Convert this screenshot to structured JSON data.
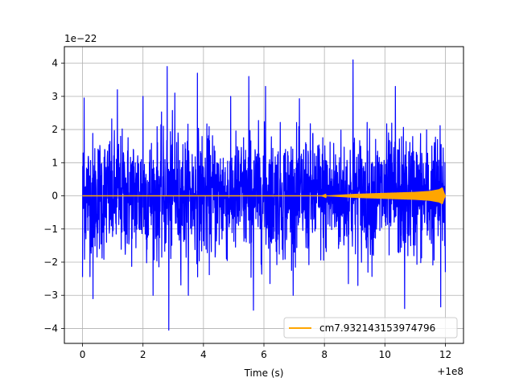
{
  "chart_data": {
    "type": "line",
    "title": "",
    "xlabel": "Time (s)",
    "ylabel": "",
    "x_offset_label": "+1e8",
    "y_scale_label": "1e−22",
    "xlim": [
      -0.6,
      12.6
    ],
    "ylim": [
      -4.45,
      4.5
    ],
    "x_ticks": [
      0,
      2,
      4,
      6,
      8,
      10,
      12
    ],
    "x_tick_labels": [
      "0",
      "2",
      "4",
      "6",
      "8",
      "10",
      "12"
    ],
    "y_ticks": [
      -4,
      -3,
      -2,
      -1,
      0,
      1,
      2,
      3,
      4
    ],
    "y_tick_labels": [
      "−4",
      "−3",
      "−2",
      "−1",
      "0",
      "1",
      "2",
      "3",
      "4"
    ],
    "grid": true,
    "legend_position": "lower-right",
    "series": [
      {
        "color": "#0000ff",
        "x_range": [
          0,
          12
        ],
        "typical_envelope": [
          -1.9,
          2.0
        ],
        "peaks": [
          {
            "x": 0.05,
            "y": 2.95
          },
          {
            "x": 0.0,
            "y": -2.45
          },
          {
            "x": 0.35,
            "y": -3.1
          },
          {
            "x": 1.15,
            "y": 3.2
          },
          {
            "x": 2.0,
            "y": 3.0
          },
          {
            "x": 2.8,
            "y": 3.9
          },
          {
            "x": 2.85,
            "y": -4.05
          },
          {
            "x": 3.05,
            "y": 3.1
          },
          {
            "x": 3.8,
            "y": 3.7
          },
          {
            "x": 5.5,
            "y": 3.6
          },
          {
            "x": 5.65,
            "y": -3.45
          },
          {
            "x": 6.05,
            "y": 3.3
          },
          {
            "x": 8.95,
            "y": 4.1
          },
          {
            "x": 10.35,
            "y": 3.3
          },
          {
            "x": 10.65,
            "y": -3.4
          },
          {
            "x": 11.85,
            "y": -3.35
          },
          {
            "x": 12.0,
            "y": 2.5
          },
          {
            "x": 12.0,
            "y": -2.3
          }
        ]
      },
      {
        "name": "cm7.932143153974796",
        "color": "#ffa500",
        "x_range": [
          0,
          12
        ],
        "signal_start": 7.9,
        "envelope": [
          [
            0,
            0.0
          ],
          [
            7.9,
            0.0
          ],
          [
            9.0,
            0.06
          ],
          [
            10.0,
            0.09
          ],
          [
            11.0,
            0.12
          ],
          [
            11.5,
            0.15
          ],
          [
            11.8,
            0.2
          ],
          [
            11.9,
            0.25
          ],
          [
            11.97,
            0.05
          ],
          [
            12.0,
            0.0
          ]
        ]
      }
    ]
  }
}
